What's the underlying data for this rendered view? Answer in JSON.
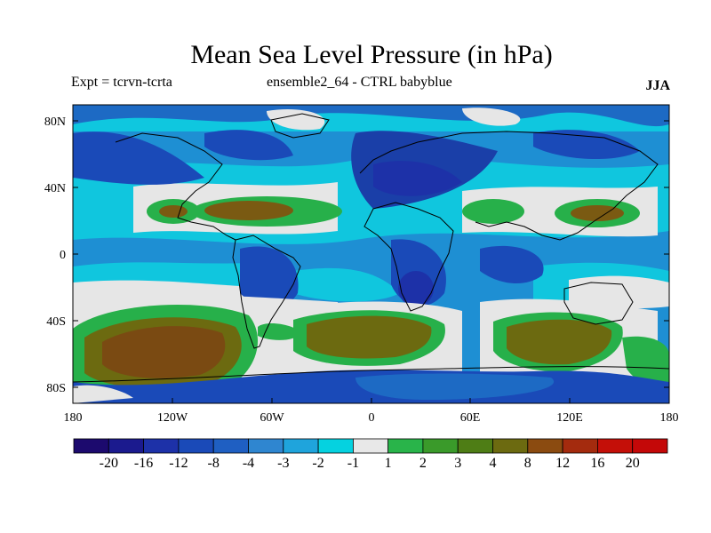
{
  "title": "Mean Sea Level Pressure (in hPa)",
  "left_subtitle": "Expt = tcrvn-tcrta",
  "center_subtitle": "ensemble2_64 - CTRL babyblue",
  "right_subtitle": "JJA",
  "lat_ticks": [
    "80N",
    "40N",
    "0",
    "40S",
    "80S"
  ],
  "lon_ticks": [
    "180",
    "120W",
    "60W",
    "0",
    "60E",
    "120E",
    "180"
  ],
  "colorbar": {
    "labels": [
      "-20",
      "-16",
      "-12",
      "-8",
      "-4",
      "-3",
      "-2",
      "-1",
      "1",
      "2",
      "3",
      "4",
      "8",
      "12",
      "16",
      "20"
    ],
    "colors": [
      "#1c0a6e",
      "#1b1a8e",
      "#1d31a8",
      "#1a4ab8",
      "#1f5fc2",
      "#2f86d0",
      "#1fa4dc",
      "#05d2e0",
      "#e8e8e8",
      "#29b44a",
      "#3a9a2a",
      "#4e7d15",
      "#6c6a10",
      "#8b4b10",
      "#a42b0e",
      "#c40f08"
    ]
  },
  "fill_colors": {
    "blue_dark": "#1a3fa8",
    "blue_mid": "#1d6ac4",
    "blue_light": "#1e9ad8",
    "cyan": "#06cddf",
    "neutral": "#e6e6e6",
    "green": "#27b04a",
    "brown": "#7a5a12"
  }
}
